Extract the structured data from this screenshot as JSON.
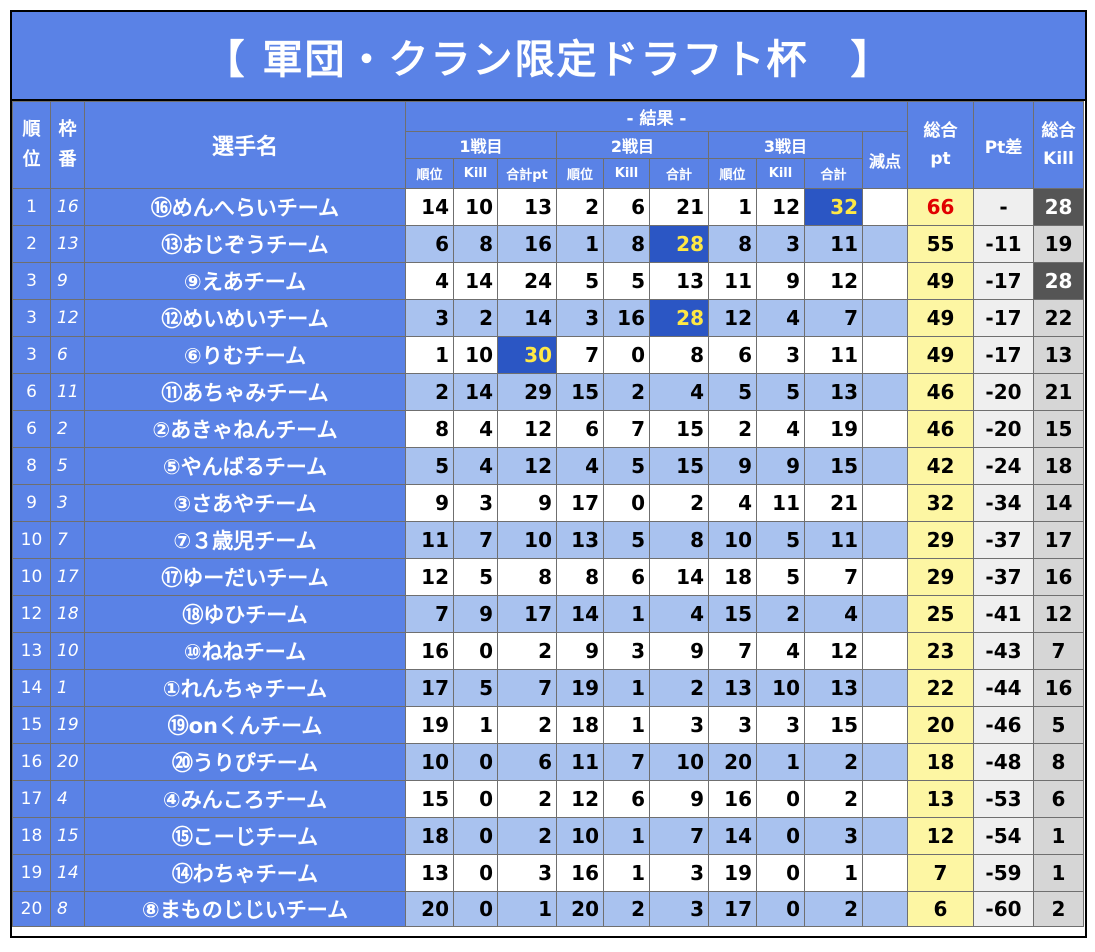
{
  "title": "【 軍団・クラン限定ドラフト杯　】",
  "headers": {
    "rank": "順位",
    "waku": "枠番",
    "player": "選手名",
    "result": "- 結果 -",
    "battle1": "1戦目",
    "battle2": "2戦目",
    "battle3": "3戦目",
    "genten": "減点",
    "total_pt": "総合pt",
    "pt_diff": "Pt差",
    "total_kill": "総合Kill",
    "sub_rank": "順位",
    "sub_kill": "Kill",
    "sub_total1": "合計pt",
    "sub_total": "合計"
  },
  "rows": [
    {
      "rank": "1",
      "waku": "16",
      "name": "⑯めんへらいチーム",
      "g1": [
        "14",
        "10",
        "13"
      ],
      "g2": [
        "2",
        "6",
        "21"
      ],
      "g3": [
        "1",
        "12",
        "32"
      ],
      "genten": "",
      "total": "66",
      "diff": "-",
      "kill": "28",
      "hi": [
        8
      ],
      "total_red": true,
      "kill_dark": true
    },
    {
      "rank": "2",
      "waku": "13",
      "name": "⑬おじぞうチーム",
      "g1": [
        "6",
        "8",
        "16"
      ],
      "g2": [
        "1",
        "8",
        "28"
      ],
      "g3": [
        "8",
        "3",
        "11"
      ],
      "genten": "",
      "total": "55",
      "diff": "-11",
      "kill": "19",
      "hi": [
        5
      ]
    },
    {
      "rank": "3",
      "waku": "9",
      "name": "⑨えあチーム",
      "g1": [
        "4",
        "14",
        "24"
      ],
      "g2": [
        "5",
        "5",
        "13"
      ],
      "g3": [
        "11",
        "9",
        "12"
      ],
      "genten": "",
      "total": "49",
      "diff": "-17",
      "kill": "28",
      "hi": [],
      "kill_dark": true
    },
    {
      "rank": "3",
      "waku": "12",
      "name": "⑫めいめいチーム",
      "g1": [
        "3",
        "2",
        "14"
      ],
      "g2": [
        "3",
        "16",
        "28"
      ],
      "g3": [
        "12",
        "4",
        "7"
      ],
      "genten": "",
      "total": "49",
      "diff": "-17",
      "kill": "22",
      "hi": [
        5
      ]
    },
    {
      "rank": "3",
      "waku": "6",
      "name": "⑥りむチーム",
      "g1": [
        "1",
        "10",
        "30"
      ],
      "g2": [
        "7",
        "0",
        "8"
      ],
      "g3": [
        "6",
        "3",
        "11"
      ],
      "genten": "",
      "total": "49",
      "diff": "-17",
      "kill": "13",
      "hi": [
        2
      ]
    },
    {
      "rank": "6",
      "waku": "11",
      "name": "⑪あちゃみチーム",
      "g1": [
        "2",
        "14",
        "29"
      ],
      "g2": [
        "15",
        "2",
        "4"
      ],
      "g3": [
        "5",
        "5",
        "13"
      ],
      "genten": "",
      "total": "46",
      "diff": "-20",
      "kill": "21",
      "hi": []
    },
    {
      "rank": "6",
      "waku": "2",
      "name": "②あきゃねんチーム",
      "g1": [
        "8",
        "4",
        "12"
      ],
      "g2": [
        "6",
        "7",
        "15"
      ],
      "g3": [
        "2",
        "4",
        "19"
      ],
      "genten": "",
      "total": "46",
      "diff": "-20",
      "kill": "15",
      "hi": []
    },
    {
      "rank": "8",
      "waku": "5",
      "name": "⑤やんばるチーム",
      "g1": [
        "5",
        "4",
        "12"
      ],
      "g2": [
        "4",
        "5",
        "15"
      ],
      "g3": [
        "9",
        "9",
        "15"
      ],
      "genten": "",
      "total": "42",
      "diff": "-24",
      "kill": "18",
      "hi": []
    },
    {
      "rank": "9",
      "waku": "3",
      "name": "③さあやチーム",
      "g1": [
        "9",
        "3",
        "9"
      ],
      "g2": [
        "17",
        "0",
        "2"
      ],
      "g3": [
        "4",
        "11",
        "21"
      ],
      "genten": "",
      "total": "32",
      "diff": "-34",
      "kill": "14",
      "hi": []
    },
    {
      "rank": "10",
      "waku": "7",
      "name": "⑦３歳児チーム",
      "g1": [
        "11",
        "7",
        "10"
      ],
      "g2": [
        "13",
        "5",
        "8"
      ],
      "g3": [
        "10",
        "5",
        "11"
      ],
      "genten": "",
      "total": "29",
      "diff": "-37",
      "kill": "17",
      "hi": []
    },
    {
      "rank": "10",
      "waku": "17",
      "name": "⑰ゆーだいチーム",
      "g1": [
        "12",
        "5",
        "8"
      ],
      "g2": [
        "8",
        "6",
        "14"
      ],
      "g3": [
        "18",
        "5",
        "7"
      ],
      "genten": "",
      "total": "29",
      "diff": "-37",
      "kill": "16",
      "hi": []
    },
    {
      "rank": "12",
      "waku": "18",
      "name": "⑱ゆひチーム",
      "g1": [
        "7",
        "9",
        "17"
      ],
      "g2": [
        "14",
        "1",
        "4"
      ],
      "g3": [
        "15",
        "2",
        "4"
      ],
      "genten": "",
      "total": "25",
      "diff": "-41",
      "kill": "12",
      "hi": []
    },
    {
      "rank": "13",
      "waku": "10",
      "name": "⑩ねねチーム",
      "g1": [
        "16",
        "0",
        "2"
      ],
      "g2": [
        "9",
        "3",
        "9"
      ],
      "g3": [
        "7",
        "4",
        "12"
      ],
      "genten": "",
      "total": "23",
      "diff": "-43",
      "kill": "7",
      "hi": []
    },
    {
      "rank": "14",
      "waku": "1",
      "name": "①れんちゃチーム",
      "g1": [
        "17",
        "5",
        "7"
      ],
      "g2": [
        "19",
        "1",
        "2"
      ],
      "g3": [
        "13",
        "10",
        "13"
      ],
      "genten": "",
      "total": "22",
      "diff": "-44",
      "kill": "16",
      "hi": []
    },
    {
      "rank": "15",
      "waku": "19",
      "name": "⑲onくんチーム",
      "g1": [
        "19",
        "1",
        "2"
      ],
      "g2": [
        "18",
        "1",
        "3"
      ],
      "g3": [
        "3",
        "3",
        "15"
      ],
      "genten": "",
      "total": "20",
      "diff": "-46",
      "kill": "5",
      "hi": []
    },
    {
      "rank": "16",
      "waku": "20",
      "name": "⑳うりぴチーム",
      "g1": [
        "10",
        "0",
        "6"
      ],
      "g2": [
        "11",
        "7",
        "10"
      ],
      "g3": [
        "20",
        "1",
        "2"
      ],
      "genten": "",
      "total": "18",
      "diff": "-48",
      "kill": "8",
      "hi": []
    },
    {
      "rank": "17",
      "waku": "4",
      "name": "④みんころチーム",
      "g1": [
        "15",
        "0",
        "2"
      ],
      "g2": [
        "12",
        "6",
        "9"
      ],
      "g3": [
        "16",
        "0",
        "2"
      ],
      "genten": "",
      "total": "13",
      "diff": "-53",
      "kill": "6",
      "hi": []
    },
    {
      "rank": "18",
      "waku": "15",
      "name": "⑮こーじチーム",
      "g1": [
        "18",
        "0",
        "2"
      ],
      "g2": [
        "10",
        "1",
        "7"
      ],
      "g3": [
        "14",
        "0",
        "3"
      ],
      "genten": "",
      "total": "12",
      "diff": "-54",
      "kill": "1",
      "hi": []
    },
    {
      "rank": "19",
      "waku": "14",
      "name": "⑭わちゃチーム",
      "g1": [
        "13",
        "0",
        "3"
      ],
      "g2": [
        "16",
        "1",
        "3"
      ],
      "g3": [
        "19",
        "0",
        "1"
      ],
      "genten": "",
      "total": "7",
      "diff": "-59",
      "kill": "1",
      "hi": []
    },
    {
      "rank": "20",
      "waku": "8",
      "name": "⑧まものじじいチーム",
      "g1": [
        "20",
        "0",
        "1"
      ],
      "g2": [
        "20",
        "2",
        "3"
      ],
      "g3": [
        "17",
        "0",
        "2"
      ],
      "genten": "",
      "total": "6",
      "diff": "-60",
      "kill": "2",
      "hi": []
    }
  ]
}
